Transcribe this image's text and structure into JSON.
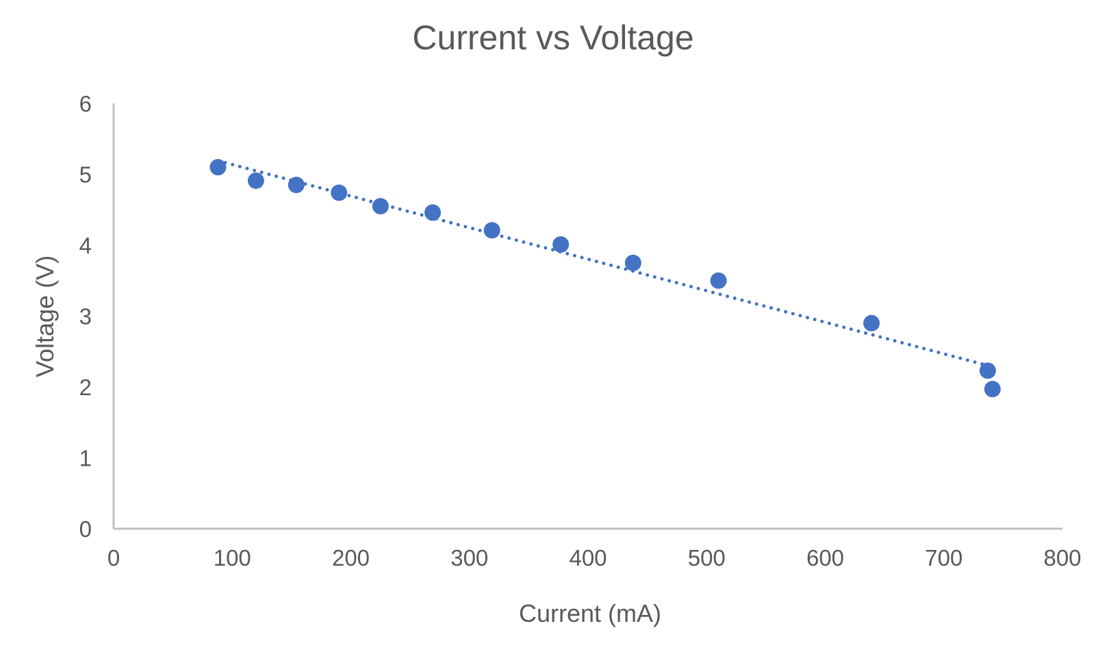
{
  "chart_data": {
    "type": "scatter",
    "title": "Current vs Voltage",
    "xlabel": "Current (mA)",
    "ylabel": "Voltage (V)",
    "xlim": [
      0,
      800
    ],
    "ylim": [
      0,
      6
    ],
    "xticks": [
      0,
      100,
      200,
      300,
      400,
      500,
      600,
      700,
      800
    ],
    "yticks": [
      0,
      1,
      2,
      3,
      4,
      5,
      6
    ],
    "grid": false,
    "legend": "none",
    "trendline": "linear, dotted",
    "color": "#4472C4",
    "points": [
      {
        "x": 88,
        "y": 5.1
      },
      {
        "x": 120,
        "y": 4.91
      },
      {
        "x": 154,
        "y": 4.85
      },
      {
        "x": 190,
        "y": 4.74
      },
      {
        "x": 225,
        "y": 4.55
      },
      {
        "x": 269,
        "y": 4.46
      },
      {
        "x": 319,
        "y": 4.21
      },
      {
        "x": 377,
        "y": 4.01
      },
      {
        "x": 438,
        "y": 3.75
      },
      {
        "x": 510,
        "y": 3.5
      },
      {
        "x": 639,
        "y": 2.9
      },
      {
        "x": 737,
        "y": 2.23
      },
      {
        "x": 741,
        "y": 1.97
      }
    ]
  }
}
